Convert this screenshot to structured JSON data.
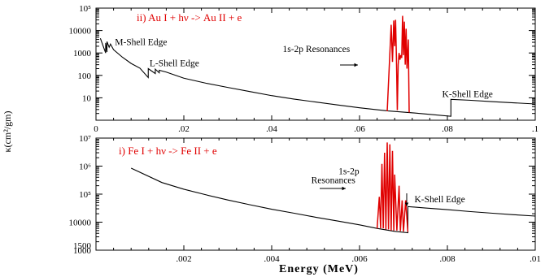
{
  "figure": {
    "xlabel": "Energy (MeV)",
    "ylabel": "κ(cm²/gm)"
  },
  "chart_data": [
    {
      "type": "line",
      "panel": "top",
      "title": "ii) Au I + hν -> Au II + e",
      "xlabel": "",
      "ylabel": "κ(cm²/gm)",
      "xlim": [
        0,
        0.1
      ],
      "ylim": [
        1,
        100000
      ],
      "y_scale": "log",
      "x_ticks": [
        0,
        0.02,
        0.04,
        0.06,
        0.08,
        0.1
      ],
      "x_tick_labels": [
        "0",
        ".02",
        ".04",
        ".06",
        ".08",
        ".1"
      ],
      "y_ticks": [
        10,
        100,
        1000,
        10000,
        100000
      ],
      "y_tick_labels": [
        "10",
        "100",
        "1000",
        "10000",
        "10⁵"
      ],
      "series": [
        {
          "color": "#000000",
          "x": [
            0.001,
            0.0022,
            0.0022,
            0.0025,
            0.0025,
            0.003,
            0.0033,
            0.004,
            0.006,
            0.008,
            0.01,
            0.0119,
            0.0119,
            0.0135,
            0.0135,
            0.0144,
            0.0144,
            0.016,
            0.02,
            0.025,
            0.03,
            0.035,
            0.04,
            0.045,
            0.05,
            0.055,
            0.06,
            0.065,
            0.0665,
            0.0713,
            0.075,
            0.0808,
            0.0808,
            0.085,
            0.09,
            0.095,
            0.1
          ],
          "y": [
            4500,
            1000,
            2800,
            1100,
            3200,
            1800,
            2500,
            1400,
            650,
            340,
            210,
            80,
            200,
            120,
            190,
            130,
            170,
            140,
            75,
            45,
            29,
            19,
            12.5,
            8.8,
            6.5,
            4.8,
            3.6,
            2.8,
            2.6,
            2.2,
            1.9,
            1.5,
            8.5,
            7.8,
            6.8,
            6.0,
            5.3
          ]
        },
        {
          "color": "#e00000",
          "x": [
            0.0663,
            0.0672,
            0.0675,
            0.0678,
            0.068,
            0.0682,
            0.0684,
            0.0686,
            0.0688,
            0.069,
            0.0692,
            0.0694,
            0.0696,
            0.0698,
            0.07,
            0.0702,
            0.0704,
            0.0706,
            0.0708,
            0.0711,
            0.0713
          ],
          "y": [
            2.5,
            18000,
            400,
            28000,
            2000,
            30000,
            600,
            2.8,
            300,
            1000,
            500,
            800,
            600,
            45000,
            800,
            25000,
            300,
            12000,
            200,
            4000,
            2.2
          ]
        }
      ],
      "annotations": [
        {
          "text": "M-Shell Edge",
          "x": 0.0043,
          "y": 2200
        },
        {
          "text": "L-Shell Edge",
          "x": 0.0122,
          "y": 260
        },
        {
          "text": "1s-2p Resonances",
          "x": 0.0425,
          "y": 1100
        },
        {
          "text": "K-Shell Edge",
          "x": 0.0788,
          "y": 11
        }
      ]
    },
    {
      "type": "line",
      "panel": "bottom",
      "title": "i) Fe I + hν -> Fe II + e",
      "xlabel": "Energy (MeV)",
      "ylabel": "",
      "xlim": [
        0,
        0.01
      ],
      "ylim": [
        1000,
        10000000
      ],
      "y_scale": "log",
      "x_ticks": [
        0.002,
        0.004,
        0.006,
        0.008,
        0.01
      ],
      "x_tick_labels": [
        ".002",
        ".004",
        ".006",
        ".008",
        ".01"
      ],
      "y_ticks": [
        1000,
        10000,
        100000,
        1000000,
        10000000
      ],
      "y_tick_labels": [
        "1000",
        "10000",
        "10⁵",
        "10⁶",
        "10⁷"
      ],
      "extra_y_labels": [
        {
          "value": 1500,
          "label": "1500"
        }
      ],
      "series": [
        {
          "color": "#000000",
          "x": [
            0.0008,
            0.0015,
            0.002,
            0.0025,
            0.003,
            0.0035,
            0.004,
            0.0045,
            0.005,
            0.0055,
            0.006,
            0.0064,
            0.0068,
            0.0071,
            0.0071,
            0.0075,
            0.008,
            0.0085,
            0.009,
            0.0095,
            0.01
          ],
          "y": [
            850000,
            260000,
            150000,
            95000,
            62000,
            42000,
            29000,
            21000,
            15000,
            11000,
            8000,
            6000,
            4700,
            4200,
            36000,
            32000,
            28000,
            24000,
            21000,
            18500,
            16500
          ]
        },
        {
          "color": "#e00000",
          "x": [
            0.0064,
            0.00645,
            0.00648,
            0.00651,
            0.00654,
            0.00657,
            0.0066,
            0.00663,
            0.00666,
            0.00669,
            0.00672,
            0.00675,
            0.00678,
            0.0068,
            0.00685,
            0.0069,
            0.00693,
            0.00697,
            0.007,
            0.00705,
            0.0071
          ],
          "y": [
            6000,
            80000,
            6000,
            1200000,
            6000,
            3000000,
            5500,
            7000000,
            5500,
            6000000,
            5000,
            3500000,
            5000,
            500000,
            5000,
            200000,
            4800,
            60000,
            4600,
            60000,
            4500
          ]
        }
      ],
      "annotations": [
        {
          "text": "1s-2p",
          "x": 0.00552,
          "y": 520000
        },
        {
          "text": "Resonances",
          "x": 0.0049,
          "y": 250000
        },
        {
          "text": "K-Shell Edge",
          "x": 0.00725,
          "y": 52000
        }
      ]
    }
  ]
}
